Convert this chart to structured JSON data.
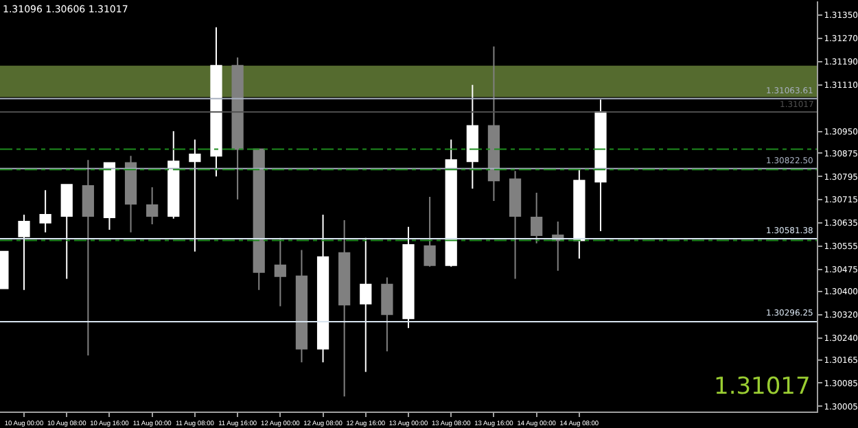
{
  "chart_data": {
    "type": "candlestick",
    "x": [
      "--08-09T20:00",
      "--08-10T00:00",
      "--08-10T04:00",
      "--08-10T08:00",
      "--08-10T12:00",
      "--08-10T16:00",
      "--08-10T20:00",
      "--08-11T00:00",
      "--08-11T04:00",
      "--08-11T08:00",
      "--08-11T12:00",
      "--08-11T16:00",
      "--08-11T20:00",
      "--08-12T00:00",
      "--08-12T04:00",
      "--08-12T08:00",
      "--08-12T12:00",
      "--08-12T16:00",
      "--08-12T20:00",
      "--08-13T00:00",
      "--08-13T04:00",
      "--08-13T08:00",
      "--08-13T12:00",
      "--08-13T16:00",
      "--08-13T20:00",
      "--08-14T00:00",
      "--08-14T04:00",
      "--08-14T08:00",
      "--08-14T12:00"
    ],
    "ohlc": [
      [
        1.3041,
        1.30537,
        1.3041,
        1.30537
      ],
      [
        1.30589,
        1.30664,
        1.30405,
        1.3064
      ],
      [
        1.30636,
        1.30748,
        1.30603,
        1.30664
      ],
      [
        1.30659,
        1.30767,
        1.30443,
        1.30767
      ],
      [
        1.30763,
        1.30852,
        1.3018,
        1.30659
      ],
      [
        1.30654,
        1.30842,
        1.30612,
        1.30842
      ],
      [
        1.30842,
        1.30866,
        1.30603,
        1.30701
      ],
      [
        1.30697,
        1.30758,
        1.30631,
        1.30659
      ],
      [
        1.30659,
        1.30951,
        1.3065,
        1.30847
      ],
      [
        1.30847,
        1.30922,
        1.30537,
        1.30871
      ],
      [
        1.30866,
        1.31308,
        1.30795,
        1.31176
      ],
      [
        1.31176,
        1.31204,
        1.30716,
        1.30889
      ],
      [
        1.30889,
        1.30889,
        1.30405,
        1.30466
      ],
      [
        1.3049,
        1.30584,
        1.30349,
        1.30452
      ],
      [
        1.30452,
        1.30542,
        1.30156,
        1.30203
      ],
      [
        1.30203,
        1.30664,
        1.30156,
        1.30518
      ],
      [
        1.30532,
        1.30645,
        1.30039,
        1.30354
      ],
      [
        1.30358,
        1.30584,
        1.30123,
        1.30424
      ],
      [
        1.30424,
        1.30448,
        1.30194,
        1.30321
      ],
      [
        1.30307,
        1.30622,
        1.30274,
        1.3056
      ],
      [
        1.30556,
        1.30725,
        1.30485,
        1.3049
      ],
      [
        1.3049,
        1.30922,
        1.30485,
        1.30852
      ],
      [
        1.30847,
        1.3111,
        1.30753,
        1.30969
      ],
      [
        1.30969,
        1.31242,
        1.30711,
        1.30781
      ],
      [
        1.30786,
        1.30814,
        1.30443,
        1.30659
      ],
      [
        1.30654,
        1.30739,
        1.30565,
        1.30593
      ],
      [
        1.30593,
        1.3064,
        1.30471,
        1.30575
      ],
      [
        1.30575,
        1.30824,
        1.30513,
        1.30781
      ],
      [
        1.30777,
        1.31059,
        1.30607,
        1.31017
      ]
    ],
    "colors": [
      "#ffffff",
      "#ffffff",
      "#ffffff",
      "#ffffff",
      "#808080",
      "#ffffff",
      "#808080",
      "#808080",
      "#ffffff",
      "#ffffff",
      "#ffffff",
      "#808080",
      "#808080",
      "#808080",
      "#808080",
      "#ffffff",
      "#808080",
      "#ffffff",
      "#808080",
      "#ffffff",
      "#808080",
      "#ffffff",
      "#ffffff",
      "#808080",
      "#808080",
      "#808080",
      "#808080",
      "#ffffff",
      "#ffffff"
    ],
    "xlim": [
      "--08-09T19:30",
      "--08-16T04:30"
    ],
    "xticks": [
      {
        "value": "--08-10T00:00",
        "label": "10 Aug 00:00"
      },
      {
        "value": "--08-10T08:00",
        "label": "10 Aug 08:00"
      },
      {
        "value": "--08-10T16:00",
        "label": "10 Aug 16:00"
      },
      {
        "value": "--08-11T00:00",
        "label": "11 Aug 00:00"
      },
      {
        "value": "--08-11T08:00",
        "label": "11 Aug 08:00"
      },
      {
        "value": "--08-11T16:00",
        "label": "11 Aug 16:00"
      },
      {
        "value": "--08-12T00:00",
        "label": "12 Aug 00:00"
      },
      {
        "value": "--08-12T08:00",
        "label": "12 Aug 08:00"
      },
      {
        "value": "--08-12T16:00",
        "label": "12 Aug 16:00"
      },
      {
        "value": "--08-13T00:00",
        "label": "13 Aug 00:00"
      },
      {
        "value": "--08-13T08:00",
        "label": "13 Aug 08:00"
      },
      {
        "value": "--08-13T16:00",
        "label": "13 Aug 16:00"
      },
      {
        "value": "--08-14T00:00",
        "label": "14 Aug 00:00"
      },
      {
        "value": "--08-14T08:00",
        "label": "14 Aug 08:00"
      }
    ],
    "ylim": [
      1.29987,
      1.31397
    ],
    "yticks": [
      {
        "value": 1.3135,
        "label": "1.31350"
      },
      {
        "value": 1.3127,
        "label": "1.31270"
      },
      {
        "value": 1.3119,
        "label": "1.31190"
      },
      {
        "value": 1.3111,
        "label": "1.31110"
      },
      {
        "value": 1.3095,
        "label": "1.30950"
      },
      1.30875,
      1.30795,
      1.30715,
      1.30635,
      1.30555,
      1.30475,
      {
        "value": 1.304,
        "label": "1.30400"
      },
      {
        "value": 1.3032,
        "label": "1.30320"
      },
      {
        "value": 1.3024,
        "label": "1.30240"
      },
      1.30165,
      1.30085,
      1.30005
    ],
    "ref_lines": [
      {
        "axis": "y",
        "value": 1.31063,
        "label": "1.31063.61",
        "color": "#a8b0c0"
      },
      {
        "axis": "y",
        "value": 1.30822,
        "label": "1.30822.50",
        "color": "#a8b0c0"
      },
      {
        "axis": "y",
        "value": 1.30581,
        "label": "1.30581.38",
        "color": "#d8e4f0"
      },
      {
        "axis": "y",
        "value": 1.30296,
        "label": "1.30296.25",
        "color": "#d8e4f0"
      },
      {
        "axis": "y",
        "value": 1.31017,
        "label": "1.31017",
        "color": "#505050"
      },
      {
        "axis": "y",
        "value": 1.30889,
        "color": "#1e8c1e",
        "line_style": "dashed"
      },
      {
        "axis": "y",
        "value": 1.30819,
        "color": "#1e8c1e",
        "line_style": "dashed"
      },
      {
        "axis": "y",
        "value": 1.30575,
        "color": "#1e8c1e",
        "line_style": "dashed"
      }
    ],
    "bands": [
      {
        "axis": "y",
        "from": 1.31068,
        "to": 1.31176,
        "color": "#556b2f"
      }
    ],
    "annotations": [
      "1.31096 1.30606 1.31017",
      "1.31017"
    ],
    "grid": false
  }
}
